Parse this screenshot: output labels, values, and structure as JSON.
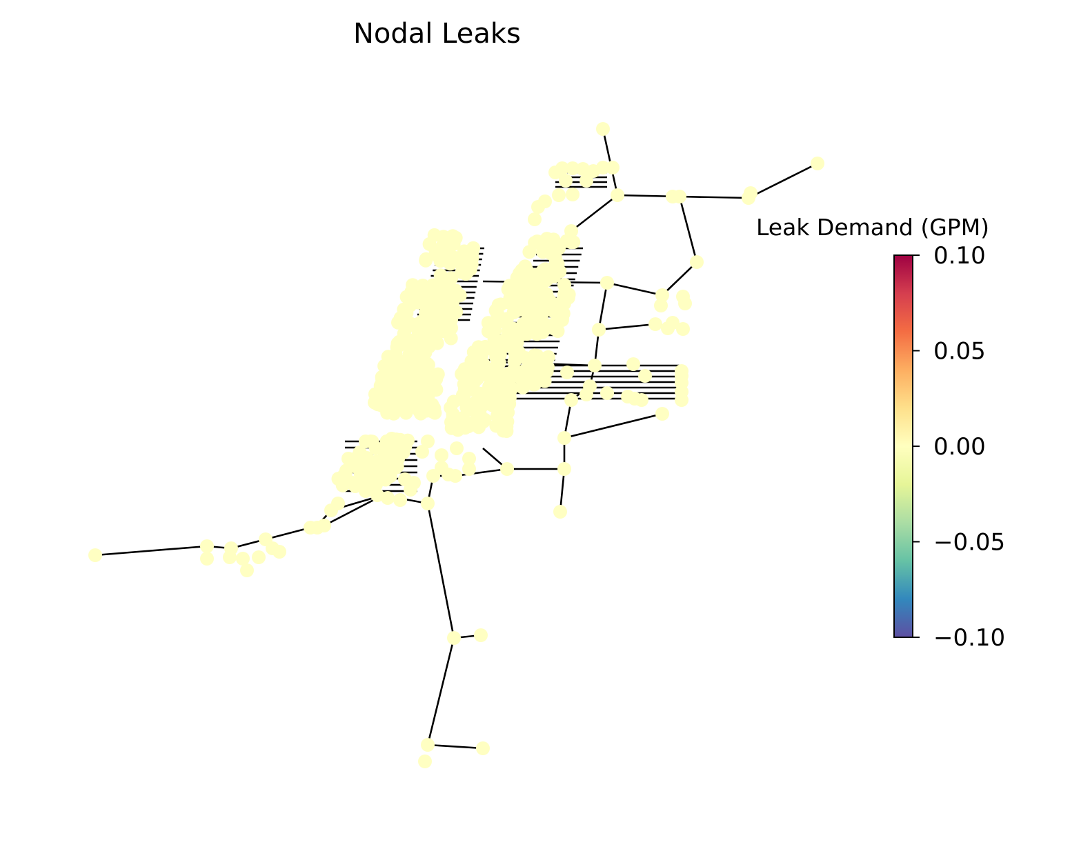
{
  "title": "Nodal Leaks",
  "colorbar": {
    "label": "Leak Demand (GPM)",
    "ticks": [
      {
        "value": 0.1,
        "label": "0.10"
      },
      {
        "value": 0.05,
        "label": "0.05"
      },
      {
        "value": 0.0,
        "label": "0.00"
      },
      {
        "value": -0.05,
        "label": "−0.05"
      },
      {
        "value": -0.1,
        "label": "−0.10"
      }
    ],
    "range": [
      -0.1,
      0.1
    ],
    "colormap": "Spectral_r",
    "stops": [
      "#5e4fa2",
      "#3288bd",
      "#66c2a5",
      "#abdda4",
      "#e6f598",
      "#ffffbf",
      "#fee08b",
      "#fdae61",
      "#f46d43",
      "#d53e4f",
      "#9e0142"
    ]
  },
  "colors": {
    "node": "#ffffc2",
    "edge": "#000000"
  }
}
